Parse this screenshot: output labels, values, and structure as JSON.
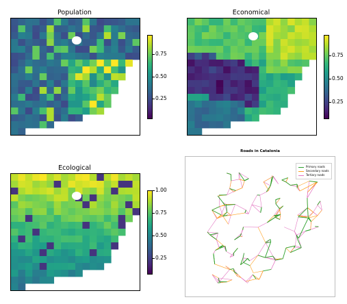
{
  "panels": [
    {
      "title": "Population",
      "ticks": [
        "0.75",
        "0.50",
        "0.25"
      ],
      "tick_values": [
        0.75,
        0.5,
        0.25
      ],
      "vmin": 0.03,
      "vmax": 0.97
    },
    {
      "title": "Economical",
      "ticks": [
        "0.75",
        "0.50",
        "0.25"
      ],
      "tick_values": [
        0.75,
        0.5,
        0.25
      ],
      "vmin": 0.08,
      "vmax": 0.97
    },
    {
      "title": "Ecological",
      "ticks": [
        "1.00",
        "0.75",
        "0.50",
        "0.25"
      ],
      "tick_values": [
        1.0,
        0.75,
        0.5,
        0.25
      ],
      "vmin": 0.08,
      "vmax": 1.0
    }
  ],
  "roads": {
    "title": "Roads in Catalonia",
    "legend": [
      {
        "label": "Primary roads",
        "color": "#2ca02c"
      },
      {
        "label": "Secondary roads",
        "color": "#ff9f1c"
      },
      {
        "label": "Tertiary roads",
        "color": "#e377c2"
      }
    ]
  },
  "chart_data": [
    {
      "type": "heatmap",
      "title": "Population",
      "colormap": "viridis",
      "colorbar_ticks": [
        0.25,
        0.5,
        0.75
      ]
    },
    {
      "type": "heatmap",
      "title": "Economical",
      "colormap": "viridis",
      "colorbar_ticks": [
        0.25,
        0.5,
        0.75
      ]
    },
    {
      "type": "heatmap",
      "title": "Ecological",
      "colormap": "viridis",
      "colorbar_ticks": [
        0.25,
        0.5,
        0.75,
        1.0
      ]
    },
    {
      "type": "map",
      "title": "Roads in Catalonia",
      "series": [
        {
          "name": "Primary roads"
        },
        {
          "name": "Secondary roads"
        },
        {
          "name": "Tertiary roads"
        }
      ]
    }
  ]
}
